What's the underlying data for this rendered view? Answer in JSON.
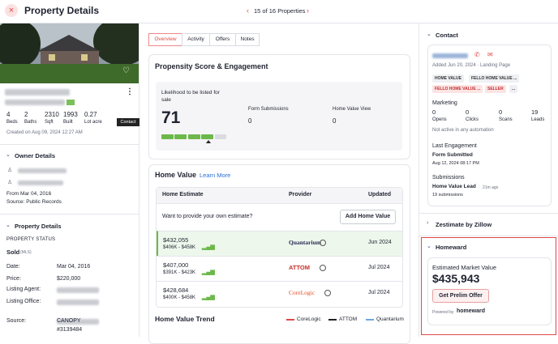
{
  "header": {
    "title": "Property Details",
    "pager": "15 of 16 Properties"
  },
  "summary": {
    "stats": [
      {
        "value": 4,
        "label": "Beds"
      },
      {
        "value": 2,
        "label": "Baths"
      },
      {
        "value": 2310,
        "label": "Sqft"
      },
      {
        "value": 1993,
        "label": "Built"
      },
      {
        "value": 0.27,
        "label": "Lot acre"
      }
    ],
    "created": "Created on Aug 09, 2024 12:27 AM",
    "tooltip": "Contact"
  },
  "owner": {
    "title": "Owner Details",
    "since": "From Mar 04, 2016",
    "source": "Source: Public Records"
  },
  "property": {
    "title": "Property Details",
    "status_label": "PROPERTY STATUS",
    "status": "Sold",
    "status_note": "(MLS)",
    "fields": [
      {
        "label": "Date:",
        "value": "Mar 04, 2016"
      },
      {
        "label": "Price:",
        "value": "$220,000"
      },
      {
        "label": "Listing Agent:"
      },
      {
        "label": "Listing Office:"
      },
      {
        "label": "Source:",
        "lines": [
          "CANOPY",
          "#3139484"
        ]
      }
    ]
  },
  "tabs": [
    "Overview",
    "Activity",
    "Offers",
    "Notes"
  ],
  "propensity": {
    "title": "Propensity Score & Engagement",
    "likelihood_label": "Likelihood to be listed for sale",
    "score": 71,
    "metrics": [
      {
        "label": "Form Submissions",
        "value": 0
      },
      {
        "label": "Home Value View",
        "value": 0
      }
    ]
  },
  "home_value": {
    "title": "Home Value",
    "link": "Learn More",
    "columns": [
      "Home Estimate",
      "Provider",
      "Updated"
    ],
    "prompt": "Want to provide your own estimate?",
    "button": "Add Home Value",
    "rows": [
      {
        "estimate": "$432,055",
        "range": "$406K - $458K",
        "provider": "Quantarium",
        "updated": "Jun 2024"
      },
      {
        "estimate": "$407,000",
        "range": "$391K - $423K",
        "provider": "ATTOM",
        "updated": "Jul 2024"
      },
      {
        "estimate": "$428,684",
        "range": "$400K - $458K",
        "provider": "CoreLogic",
        "updated": "Jul 2024"
      }
    ],
    "trend_title": "Home Value Trend",
    "trend_legend": [
      "CoreLogic",
      "ATTOM",
      "Quantarium"
    ]
  },
  "contact": {
    "title": "Contact",
    "added": "Added Jun 20, 2024 · Landing Page",
    "tags": [
      "HOME VALUE",
      "FELLO HOME VALUE ...",
      "FELLO HOME VALUE ...",
      "SELLER",
      "..."
    ],
    "marketing_title": "Marketing",
    "marketing": [
      {
        "value": 0,
        "label": "Opens"
      },
      {
        "value": 0,
        "label": "Clicks"
      },
      {
        "value": 0,
        "label": "Scans"
      },
      {
        "value": 19,
        "label": "Leads"
      }
    ],
    "automation": "Not active in any automation",
    "last_engagement_title": "Last Engagement",
    "last_engagement": "Form Submitted",
    "last_engagement_date": "Aug 12, 2024 08:17 PM",
    "submissions_title": "Submissions",
    "submission": "Home Value Lead",
    "submission_time": "21m ago",
    "submission_count": "19 submissions"
  },
  "zestimate": {
    "title": "Zestimate by Zillow"
  },
  "homeward": {
    "title": "Homeward",
    "estimate_label": "Estimated Market Value",
    "estimate": "$435,943",
    "button": "Get Prelim Offer",
    "powered": "Powered by",
    "brand": "homeward"
  }
}
